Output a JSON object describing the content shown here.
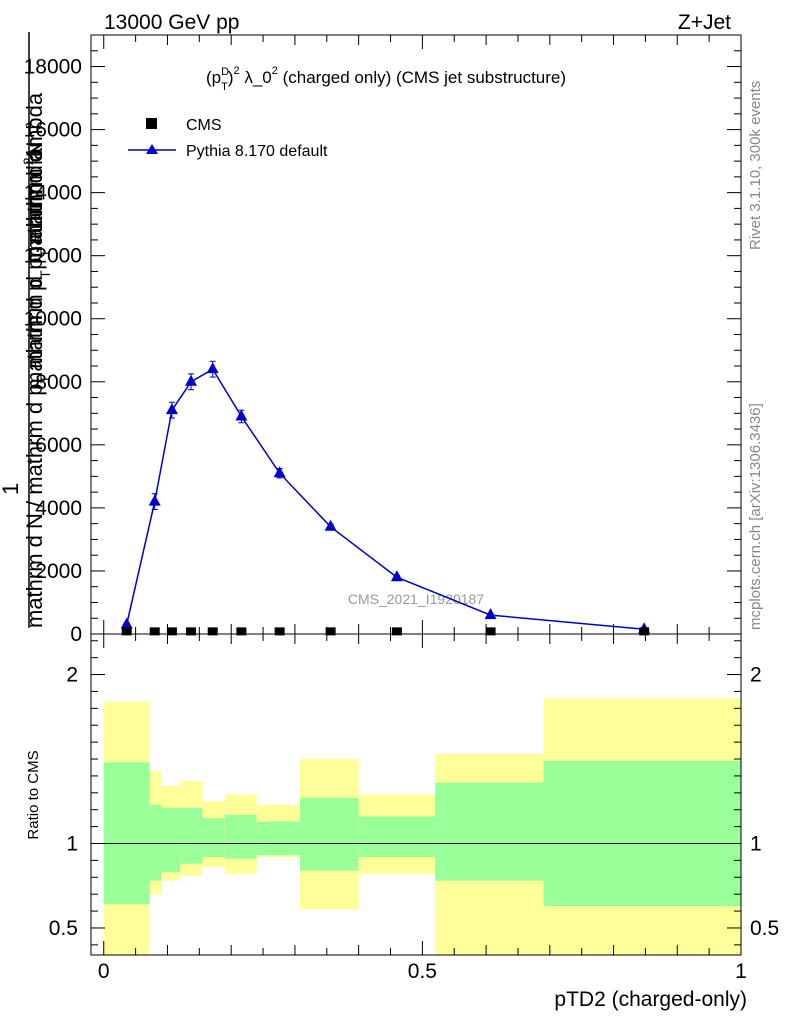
{
  "header": {
    "energy": "13000 GeV pp",
    "process": "Z+Jet"
  },
  "side_labels": {
    "rivet": "Rivet 3.1.10,  300k events",
    "mcplots": "mcplots.cern.ch [arXiv:1306.3436]"
  },
  "chart_data": [
    {
      "type": "line",
      "title": "(p_T^D)^2 λ_0^2 (charged only) (CMS jet substructure)",
      "title_parts": {
        "open": "(p",
        "sup_d": "D",
        "sub_t": "T",
        "close_sq": ")",
        "two": "2",
        "lambda": " λ_0",
        "rest": " (charged only) (CMS jet substructure)"
      },
      "watermark": "CMS_2021_I1920187",
      "ylabel_lines": [
        "1",
        "mathrm d N / mathrm d p_T mathrm d p_T mathrm d lambda",
        "mathrm d^2N"
      ],
      "ylabel_overlay": {
        "top_num": "mathrm d",
        "top_sup": "2",
        "top_rest": "N",
        "top_den_a": "mathrm d p",
        "top_den_sub": "T",
        "top_den_b": " mathrm d lambda",
        "one": "1",
        "bottom_a": "mathrm d N / mathrm d p",
        "bottom_sub": "T",
        "bottom_b": " mathrm d p",
        "bottom_sub2": "T",
        "bottom_c": " mathrm d"
      },
      "xlim": [
        -0.02,
        1.0
      ],
      "ylim": [
        0,
        19000
      ],
      "y_ticks": [
        0,
        2000,
        4000,
        6000,
        8000,
        10000,
        12000,
        14000,
        16000,
        18000
      ],
      "y_tick_labels": [
        "0",
        "2000",
        "4000",
        "6000",
        "8000",
        "10000",
        "12000",
        "14000",
        "16000",
        "18000"
      ],
      "legend": [
        {
          "label": "CMS",
          "marker": "square",
          "color": "#000000"
        },
        {
          "label": "Pythia 8.170 default",
          "marker": "triangle",
          "color": "#0000cc"
        }
      ],
      "legend_placement": "top-left",
      "series": [
        {
          "name": "CMS",
          "x": [
            0.036,
            0.08,
            0.107,
            0.137,
            0.171,
            0.216,
            0.276,
            0.356,
            0.46,
            0.607,
            0.848
          ],
          "y": [
            20,
            20,
            20,
            20,
            20,
            20,
            20,
            20,
            20,
            20,
            20
          ]
        },
        {
          "name": "Pythia 8.170 default",
          "x": [
            0.036,
            0.08,
            0.107,
            0.137,
            0.171,
            0.216,
            0.276,
            0.356,
            0.46,
            0.607,
            0.848
          ],
          "y": [
            300,
            4200,
            7100,
            8000,
            8400,
            6900,
            5100,
            3400,
            1800,
            600,
            150
          ],
          "yerr": [
            60,
            250,
            250,
            250,
            250,
            200,
            150,
            80,
            60,
            40,
            20
          ]
        }
      ]
    },
    {
      "type": "area",
      "ylabel": "Ratio to CMS",
      "xlabel": "pTD2 (charged-only)",
      "xlim": [
        -0.02,
        1.0
      ],
      "ylim": [
        0.34,
        2.24
      ],
      "y_ticks": [
        0.5,
        1,
        2
      ],
      "y_tick_labels": [
        "0.5",
        "1",
        "2"
      ],
      "x_ticks": [
        0,
        0.5,
        1
      ],
      "x_tick_labels": [
        "0",
        "0.5",
        "1"
      ],
      "reference_line": 1,
      "band_colors": {
        "inner": "#99ff99",
        "outer": "#ffff99"
      },
      "bins": [
        {
          "x0": 0.0,
          "x1": 0.072,
          "inner": [
            0.64,
            1.48
          ],
          "outer": [
            0.34,
            1.84
          ]
        },
        {
          "x0": 0.072,
          "x1": 0.09,
          "inner": [
            0.78,
            1.23
          ],
          "outer": [
            0.7,
            1.43
          ]
        },
        {
          "x0": 0.09,
          "x1": 0.12,
          "inner": [
            0.83,
            1.21
          ],
          "outer": [
            0.78,
            1.34
          ]
        },
        {
          "x0": 0.12,
          "x1": 0.155,
          "inner": [
            0.88,
            1.21
          ],
          "outer": [
            0.81,
            1.37
          ]
        },
        {
          "x0": 0.155,
          "x1": 0.19,
          "inner": [
            0.92,
            1.15
          ],
          "outer": [
            0.86,
            1.25
          ]
        },
        {
          "x0": 0.19,
          "x1": 0.24,
          "inner": [
            0.91,
            1.17
          ],
          "outer": [
            0.82,
            1.29
          ]
        },
        {
          "x0": 0.24,
          "x1": 0.308,
          "inner": [
            0.93,
            1.13
          ],
          "outer": [
            0.92,
            1.23
          ]
        },
        {
          "x0": 0.308,
          "x1": 0.4,
          "inner": [
            0.84,
            1.27
          ],
          "outer": [
            0.61,
            1.5
          ]
        },
        {
          "x0": 0.4,
          "x1": 0.52,
          "inner": [
            0.92,
            1.16
          ],
          "outer": [
            0.82,
            1.29
          ]
        },
        {
          "x0": 0.52,
          "x1": 0.69,
          "inner": [
            0.78,
            1.36
          ],
          "outer": [
            0.34,
            1.53
          ]
        },
        {
          "x0": 0.69,
          "x1": 1.0,
          "inner": [
            0.63,
            1.49
          ],
          "outer": [
            0.34,
            1.86
          ]
        }
      ]
    }
  ]
}
